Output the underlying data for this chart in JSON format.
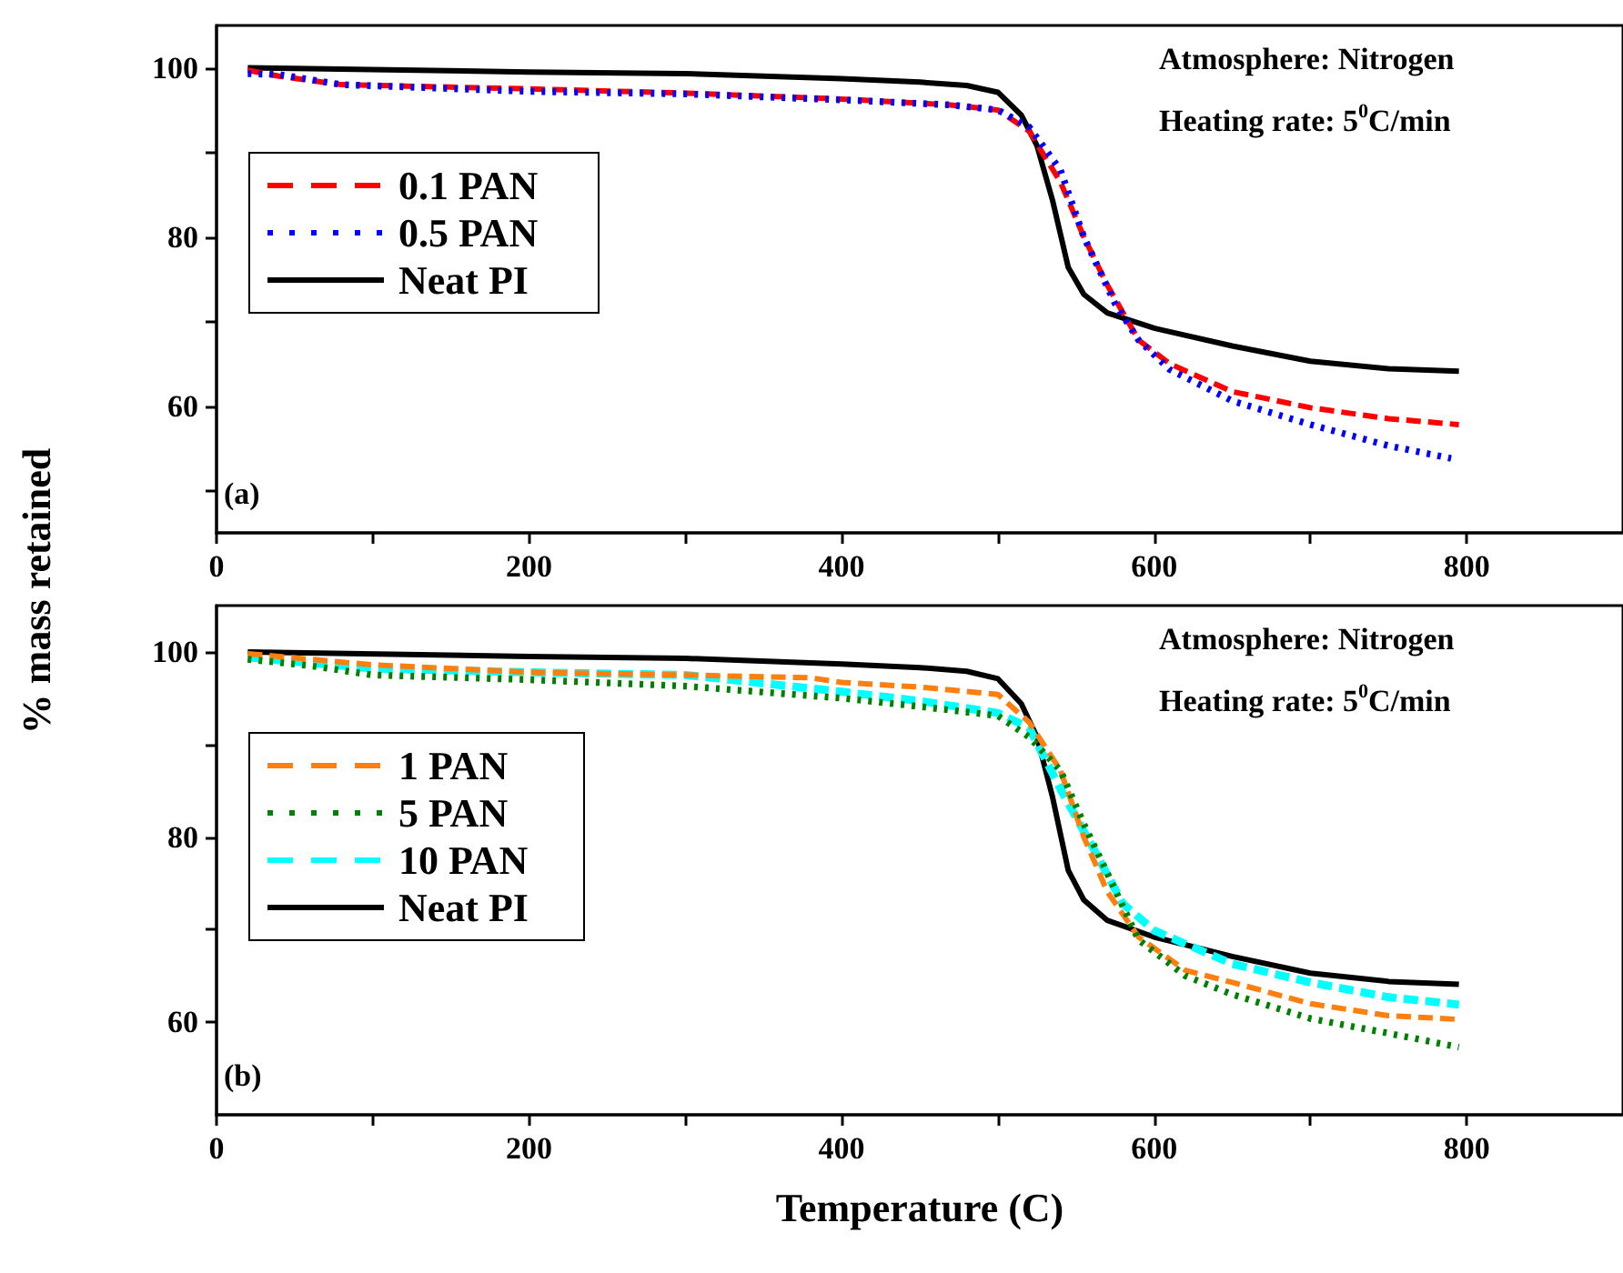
{
  "chart_data": [
    {
      "type": "line",
      "ylabel": "% mass retained",
      "xlim": [
        0,
        900
      ],
      "ylim": [
        45,
        105
      ],
      "xticks": [
        0,
        {
          "value": 100,
          "label": null
        },
        200,
        {
          "value": 300,
          "label": null
        },
        400,
        {
          "value": 500,
          "label": null
        },
        600,
        {
          "value": 700,
          "label": null
        },
        800
      ],
      "yticks": [
        {
          "value": 50,
          "label": null
        },
        60,
        {
          "value": 70,
          "label": null
        },
        80,
        {
          "value": 90,
          "label": null
        },
        100
      ],
      "grid": false,
      "legend": "left",
      "marker": "none",
      "annotations": [
        "Atmosphere: Nitrogen",
        "Heating rate: 5$^{0}$C/min",
        "(a)"
      ],
      "series": [
        {
          "name": "0.1 PAN",
          "color": "#ff0000",
          "line_style": "dashed",
          "x": [
            20,
            40,
            80,
            200,
            300,
            400,
            470,
            500,
            520,
            540,
            555,
            570,
            590,
            610,
            650,
            700,
            750,
            795
          ],
          "values": [
            99.7,
            99,
            98,
            97.5,
            97,
            96.3,
            95.6,
            95,
            92.5,
            86.5,
            80,
            74.3,
            67.8,
            65,
            61.7,
            59.8,
            58.5,
            57.8
          ]
        },
        {
          "name": "0.5 PAN",
          "color": "#0000ff",
          "line_style": "dotted",
          "x": [
            20,
            40,
            80,
            200,
            300,
            400,
            470,
            500,
            520,
            540,
            555,
            575,
            590,
            610,
            650,
            700,
            750,
            790
          ],
          "values": [
            99.3,
            99.2,
            98,
            97.2,
            96.9,
            96.2,
            95.6,
            95,
            93,
            87.9,
            80,
            72.1,
            67.8,
            64.3,
            60.6,
            57.8,
            55.3,
            53.8
          ]
        },
        {
          "name": "Neat PI",
          "color": "#000000",
          "line_style": "solid",
          "x": [
            20,
            200,
            300,
            400,
            450,
            480,
            500,
            515,
            525,
            535,
            545,
            555,
            570,
            600,
            650,
            700,
            750,
            795
          ],
          "values": [
            100,
            99.5,
            99.3,
            98.7,
            98.3,
            97.9,
            97.1,
            94.4,
            90.8,
            84.3,
            76.4,
            73.2,
            71,
            69.2,
            67.1,
            65.3,
            64.4,
            64.1
          ]
        }
      ]
    },
    {
      "type": "line",
      "xlabel": "Temperature (C)",
      "xlim": [
        0,
        900
      ],
      "ylim": [
        50,
        105
      ],
      "xticks": [
        0,
        {
          "value": 100,
          "label": null
        },
        200,
        {
          "value": 300,
          "label": null
        },
        400,
        {
          "value": 500,
          "label": null
        },
        600,
        {
          "value": 700,
          "label": null
        },
        800
      ],
      "yticks": [
        60,
        {
          "value": 70,
          "label": null
        },
        80,
        {
          "value": 90,
          "label": null
        },
        100
      ],
      "grid": false,
      "legend": "left",
      "marker": "none",
      "annotations": [
        "Atmosphere: Nitrogen",
        "Heating rate: 5$^{0}$C/min",
        "(b)"
      ],
      "series": [
        {
          "name": "1 PAN",
          "color": "#ff7f0e",
          "line_style": "dashed",
          "x": [
            20,
            100,
            200,
            300,
            380,
            400,
            450,
            500,
            520,
            540,
            555,
            570,
            590,
            620,
            650,
            700,
            750,
            795
          ],
          "values": [
            99.8,
            98.6,
            97.8,
            97.5,
            97.2,
            96.7,
            96.2,
            95.4,
            92.4,
            87.2,
            80,
            74.1,
            69.2,
            65.6,
            64.3,
            62,
            60.7,
            60.3
          ]
        },
        {
          "name": "5 PAN",
          "color": "#008000",
          "line_style": "dotted",
          "x": [
            20,
            60,
            100,
            200,
            300,
            400,
            450,
            500,
            520,
            540,
            555,
            570,
            590,
            620,
            650,
            700,
            750,
            795
          ],
          "values": [
            99.2,
            98.5,
            97.5,
            97,
            96.3,
            95,
            94.1,
            93.1,
            90.8,
            87.2,
            81.4,
            76.1,
            68.9,
            65,
            63,
            60.4,
            58.8,
            57.3
          ]
        },
        {
          "name": "10 PAN",
          "color": "#00ffff",
          "line_style": "dashed",
          "x": [
            20,
            100,
            200,
            300,
            400,
            450,
            500,
            520,
            540,
            560,
            580,
            600,
            650,
            700,
            750,
            795
          ],
          "values": [
            99.4,
            98.2,
            97.8,
            97.5,
            95.7,
            94.7,
            93.4,
            91.8,
            85.2,
            79.1,
            72.8,
            69.9,
            66.3,
            64.3,
            62.7,
            61.9
          ]
        },
        {
          "name": "Neat PI",
          "color": "#000000",
          "line_style": "solid",
          "x": [
            20,
            200,
            300,
            400,
            450,
            480,
            500,
            515,
            525,
            535,
            545,
            555,
            570,
            600,
            650,
            700,
            750,
            795
          ],
          "values": [
            100,
            99.5,
            99.3,
            98.7,
            98.3,
            97.9,
            97.1,
            94.4,
            90.8,
            84.3,
            76.4,
            73.2,
            71,
            69.2,
            67.1,
            65.3,
            64.4,
            64.1
          ]
        }
      ]
    }
  ]
}
